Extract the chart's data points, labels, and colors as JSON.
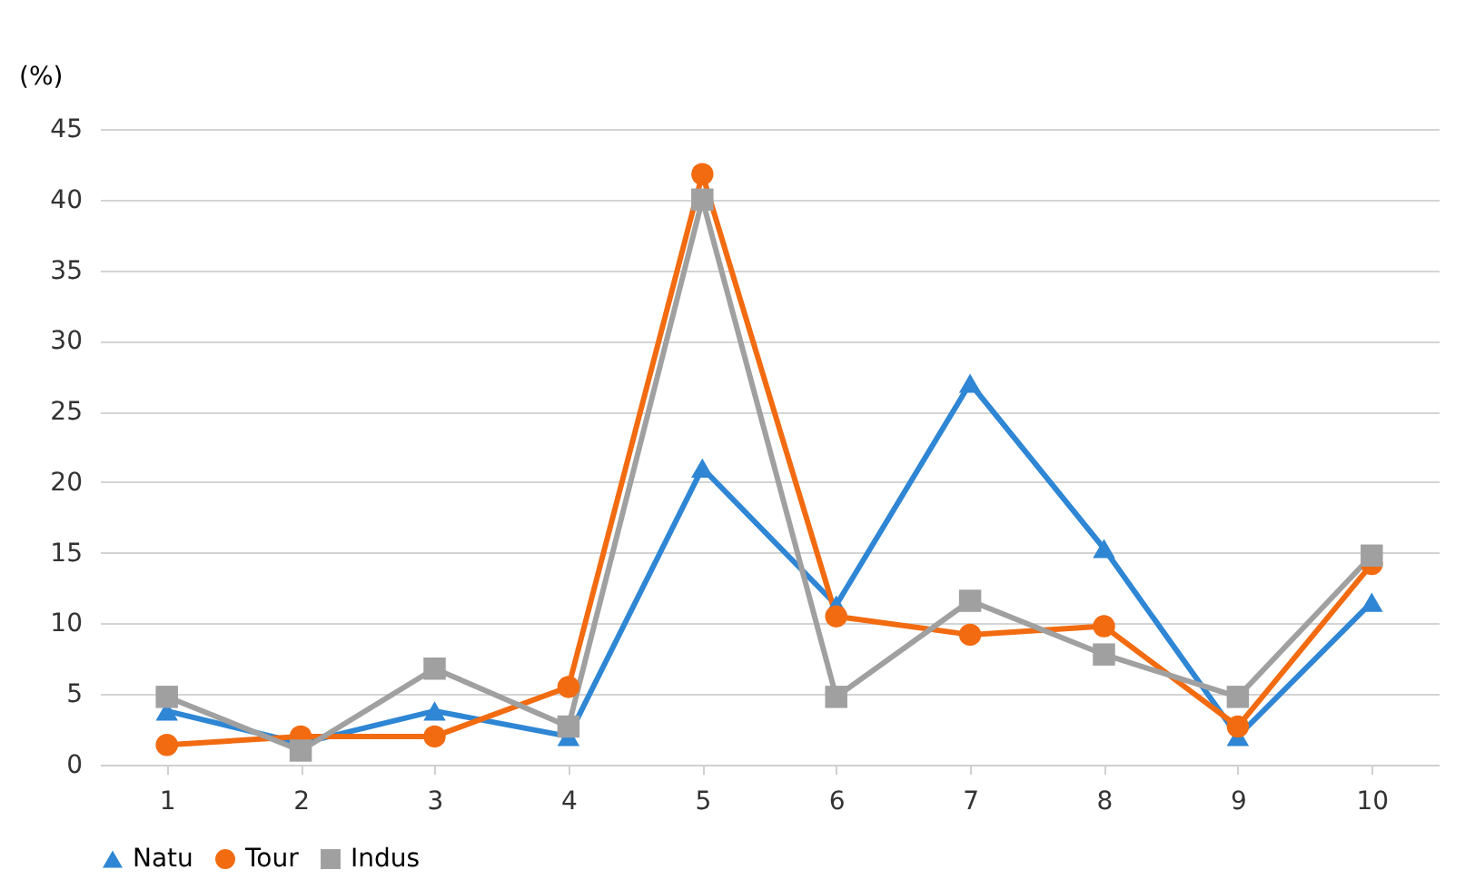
{
  "chart_data": {
    "type": "line",
    "ylabel": "(%)",
    "categories": [
      "1",
      "2",
      "3",
      "4",
      "5",
      "6",
      "7",
      "8",
      "9",
      "10"
    ],
    "series": [
      {
        "name": "Natu",
        "color": "#2e86d4",
        "marker": "triangle",
        "values": [
          3.8,
          1.5,
          3.8,
          2,
          21,
          11.3,
          27,
          15.3,
          2,
          11.5
        ]
      },
      {
        "name": "Tour",
        "color": "#f26b10",
        "marker": "circle",
        "values": [
          1.4,
          2,
          2,
          5.5,
          41.8,
          10.5,
          9.2,
          9.8,
          2.7,
          14.2
        ]
      },
      {
        "name": "Indus",
        "color": "#a0a0a0",
        "marker": "square",
        "values": [
          4.8,
          1,
          6.8,
          2.7,
          40,
          4.8,
          11.6,
          7.8,
          4.8,
          14.8
        ]
      }
    ],
    "ylim": [
      0,
      45
    ],
    "yticks": [
      0,
      5,
      10,
      15,
      20,
      25,
      30,
      35,
      40,
      45
    ],
    "grid": "y",
    "legend": "bottom",
    "line_style": "solid"
  }
}
